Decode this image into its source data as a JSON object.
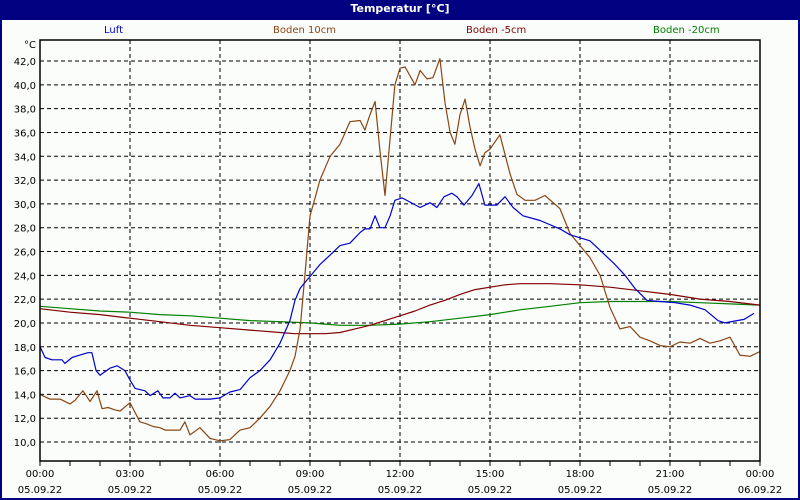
{
  "title": "Temperatur [°C]",
  "legend": [
    {
      "label": "Luft",
      "color": "#0000cc"
    },
    {
      "label": "Boden 10cm",
      "color": "#8b4513"
    },
    {
      "label": "Boden -5cm",
      "color": "#800000"
    },
    {
      "label": "Boden -20cm",
      "color": "#008000"
    }
  ],
  "y_unit": "°C",
  "y_ticks": [
    "10,0",
    "12,0",
    "14,0",
    "16,0",
    "18,0",
    "20,0",
    "22,0",
    "24,0",
    "26,0",
    "28,0",
    "30,0",
    "32,0",
    "34,0",
    "36,0",
    "38,0",
    "40,0",
    "42,0"
  ],
  "x_ticks": [
    {
      "time": "00:00",
      "date": "05.09.22"
    },
    {
      "time": "03:00",
      "date": "05.09.22"
    },
    {
      "time": "06:00",
      "date": "05.09.22"
    },
    {
      "time": "09:00",
      "date": "05.09.22"
    },
    {
      "time": "12:00",
      "date": "05.09.22"
    },
    {
      "time": "15:00",
      "date": "05.09.22"
    },
    {
      "time": "18:00",
      "date": "05.09.22"
    },
    {
      "time": "21:00",
      "date": "05.09.22"
    },
    {
      "time": "00:00",
      "date": "06.09.22"
    }
  ],
  "chart_data": {
    "type": "line",
    "title": "Temperatur [°C]",
    "xlabel": "",
    "ylabel": "°C",
    "ylim": [
      8.4,
      43.2
    ],
    "xlim_hours": [
      0,
      24
    ],
    "grid": true,
    "legend_position": "top",
    "x_unit": "hours since 05.09.22 00:00",
    "series": [
      {
        "name": "Luft",
        "color": "#0000cc",
        "x": [
          0,
          0.17,
          0.4,
          0.73,
          0.83,
          1.07,
          1.33,
          1.6,
          1.73,
          1.87,
          2.0,
          2.33,
          2.57,
          2.83,
          3.0,
          3.17,
          3.5,
          3.67,
          3.93,
          4.1,
          4.33,
          4.5,
          4.67,
          5.0,
          5.17,
          5.67,
          6.0,
          6.33,
          6.67,
          7.0,
          7.33,
          7.67,
          8.0,
          8.33,
          8.5,
          8.67,
          8.83,
          9.0,
          9.33,
          9.67,
          10.0,
          10.33,
          10.67,
          10.83,
          11.0,
          11.17,
          11.33,
          11.5,
          11.67,
          11.83,
          12.07,
          12.67,
          13.0,
          13.23,
          13.47,
          13.73,
          13.9,
          14.13,
          14.4,
          14.63,
          14.83,
          15.0,
          15.23,
          15.5,
          15.77,
          16.1,
          16.67,
          17.33,
          17.67,
          18.33,
          18.67,
          19.17,
          19.5,
          19.83,
          20.23,
          20.67,
          21.17,
          21.67,
          22.17,
          22.6,
          22.83,
          23.23,
          23.47,
          23.8
        ],
        "values": [
          18.0,
          17.1,
          16.9,
          16.9,
          16.6,
          17.1,
          17.3,
          17.5,
          17.5,
          16.0,
          15.6,
          16.2,
          16.4,
          16.0,
          15.2,
          14.5,
          14.3,
          13.9,
          14.3,
          13.7,
          13.7,
          14.1,
          13.7,
          13.9,
          13.6,
          13.6,
          13.7,
          14.2,
          14.4,
          15.4,
          16.0,
          16.9,
          18.3,
          20.2,
          21.9,
          22.9,
          23.4,
          23.9,
          24.9,
          25.7,
          26.5,
          26.7,
          27.6,
          27.9,
          27.9,
          29.0,
          28.0,
          28.0,
          29.0,
          30.3,
          30.5,
          29.7,
          30.1,
          29.7,
          30.6,
          30.9,
          30.6,
          29.9,
          30.7,
          31.7,
          29.9,
          29.9,
          29.9,
          30.6,
          29.7,
          29.0,
          28.6,
          27.9,
          27.4,
          26.9,
          26.1,
          24.9,
          24.0,
          22.9,
          21.9,
          21.8,
          21.7,
          21.5,
          21.1,
          20.2,
          20.0,
          20.2,
          20.3,
          20.8
        ]
      },
      {
        "name": "Boden 10cm",
        "color": "#8b4513",
        "x": [
          0,
          0.33,
          0.67,
          1.0,
          1.17,
          1.43,
          1.67,
          1.9,
          2.07,
          2.27,
          2.5,
          2.67,
          3.0,
          3.33,
          3.57,
          3.77,
          4.0,
          4.17,
          4.5,
          4.67,
          4.83,
          5.0,
          5.33,
          5.67,
          6.0,
          6.33,
          6.67,
          7.0,
          7.33,
          7.67,
          8.0,
          8.33,
          8.5,
          8.67,
          8.83,
          9.0,
          9.17,
          9.33,
          9.67,
          10.0,
          10.33,
          10.67,
          10.83,
          11.0,
          11.17,
          11.33,
          11.5,
          11.67,
          11.83,
          12.0,
          12.17,
          12.5,
          12.67,
          12.9,
          13.1,
          13.33,
          13.5,
          13.67,
          13.83,
          14.0,
          14.17,
          14.33,
          14.5,
          14.67,
          14.83,
          15.0,
          15.33,
          15.67,
          15.9,
          16.17,
          16.5,
          16.83,
          17.33,
          17.67,
          18.0,
          18.33,
          18.67,
          19.0,
          19.33,
          19.67,
          20.0,
          20.33,
          20.67,
          21.0,
          21.33,
          21.67,
          22.0,
          22.33,
          22.67,
          23.0,
          23.33,
          23.67,
          24.0
        ],
        "values": [
          14.0,
          13.6,
          13.6,
          13.2,
          13.5,
          14.3,
          13.4,
          14.3,
          12.8,
          12.9,
          12.7,
          12.6,
          13.3,
          11.7,
          11.5,
          11.3,
          11.2,
          11.0,
          11.0,
          11.0,
          11.7,
          10.6,
          11.2,
          10.3,
          10.1,
          10.2,
          11.0,
          11.2,
          12.0,
          13.0,
          14.3,
          16.0,
          17.2,
          19.5,
          24.0,
          29.0,
          30.5,
          32.0,
          34.0,
          35.0,
          36.9,
          37.0,
          36.2,
          37.5,
          38.6,
          34.5,
          30.7,
          35.5,
          40.0,
          41.4,
          41.5,
          40.0,
          41.2,
          40.5,
          40.6,
          42.2,
          38.5,
          36.0,
          35.0,
          37.5,
          38.8,
          36.5,
          34.6,
          33.2,
          34.3,
          34.6,
          35.8,
          32.5,
          30.8,
          30.3,
          30.3,
          30.7,
          29.6,
          27.5,
          26.5,
          25.5,
          24.0,
          21.3,
          19.5,
          19.7,
          18.8,
          18.5,
          18.1,
          18.0,
          18.4,
          18.3,
          18.7,
          18.3,
          18.5,
          18.8,
          17.3,
          17.2,
          17.6
        ]
      },
      {
        "name": "Boden -5cm",
        "color": "#800000",
        "x": [
          0,
          1,
          2,
          3,
          4,
          5,
          6,
          7,
          8,
          8.5,
          9,
          9.5,
          10,
          10.5,
          11,
          11.5,
          12,
          12.5,
          13,
          13.5,
          14,
          14.5,
          15,
          15.5,
          16,
          17,
          18,
          19,
          20,
          21,
          22,
          23,
          24
        ],
        "values": [
          21.2,
          20.9,
          20.7,
          20.4,
          20.1,
          19.8,
          19.6,
          19.4,
          19.2,
          19.1,
          19.1,
          19.1,
          19.2,
          19.5,
          19.8,
          20.2,
          20.6,
          21.0,
          21.5,
          21.9,
          22.4,
          22.8,
          23.0,
          23.2,
          23.3,
          23.3,
          23.2,
          23.0,
          22.7,
          22.4,
          22.0,
          21.8,
          21.5
        ]
      },
      {
        "name": "Boden -20cm",
        "color": "#008000",
        "x": [
          0,
          1,
          2,
          3,
          4,
          5,
          6,
          7,
          8,
          9,
          9.5,
          10,
          11,
          12,
          13,
          14,
          15,
          16,
          17,
          18,
          19,
          20,
          21,
          22,
          23,
          24
        ],
        "values": [
          21.4,
          21.2,
          21.0,
          20.9,
          20.7,
          20.6,
          20.4,
          20.2,
          20.1,
          20.0,
          19.9,
          19.8,
          19.8,
          19.9,
          20.1,
          20.4,
          20.7,
          21.1,
          21.4,
          21.7,
          21.8,
          21.8,
          21.8,
          21.7,
          21.6,
          21.5
        ]
      }
    ]
  }
}
